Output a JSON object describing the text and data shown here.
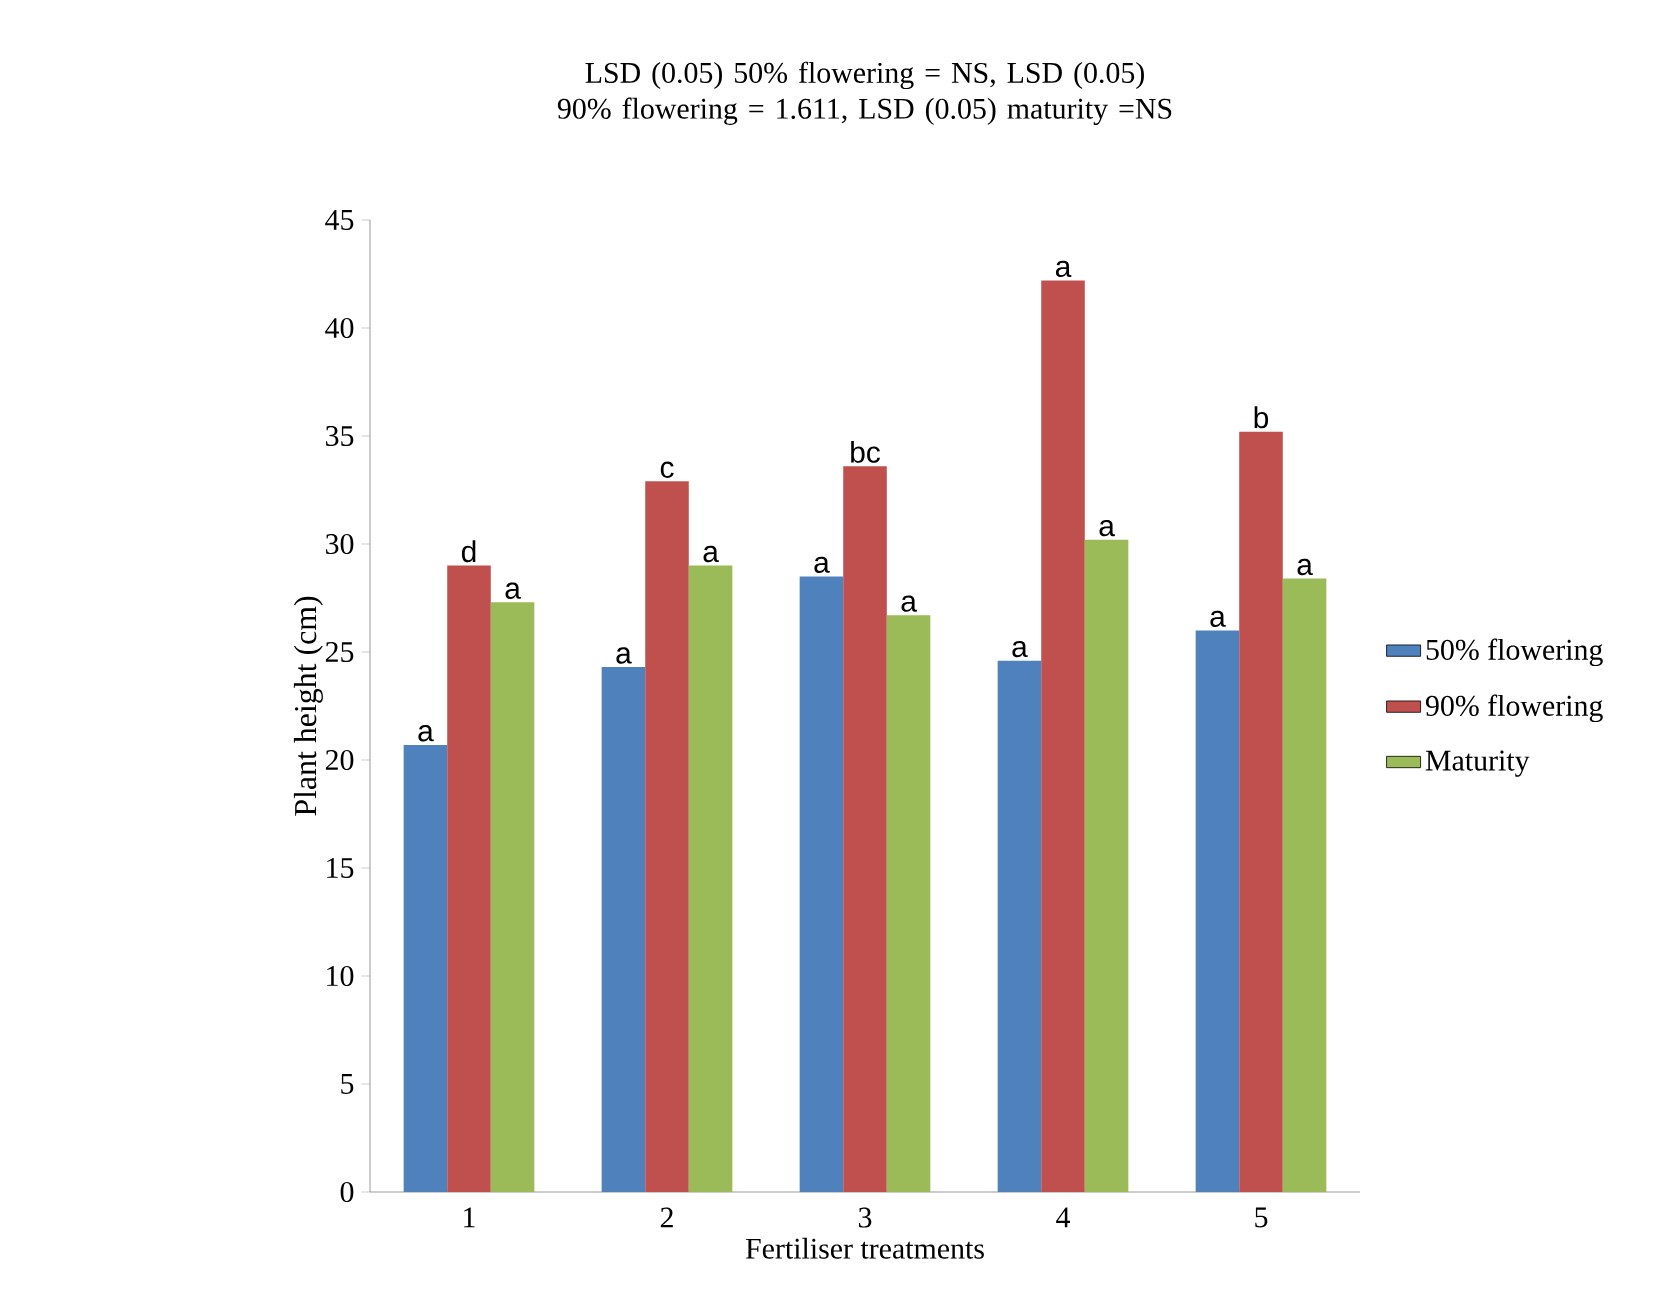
{
  "chart_data": {
    "type": "bar",
    "title": "LSD (0.05) 50% flowering = NS, LSD (0.05) 90% flowering = 1.611, LSD (0.05) maturity =NS",
    "xlabel": "Fertiliser treatments",
    "ylabel": "Plant height (cm)",
    "categories": [
      "1",
      "2",
      "3",
      "4",
      "5"
    ],
    "series": [
      {
        "name": "50% flowering",
        "color": "#4f81bd",
        "values": [
          20.7,
          24.3,
          28.5,
          24.6,
          26.0
        ],
        "value_labels": [
          "a",
          "a",
          "a",
          "a",
          "a"
        ]
      },
      {
        "name": "90% flowering",
        "color": "#c0504d",
        "values": [
          29.0,
          32.9,
          33.6,
          42.2,
          35.2
        ],
        "value_labels": [
          "d",
          "c",
          "bc",
          "a",
          "b"
        ]
      },
      {
        "name": "Maturity",
        "color": "#9bbb59",
        "values": [
          27.3,
          29.0,
          26.7,
          30.2,
          28.4
        ],
        "value_labels": [
          "a",
          "a",
          "a",
          "a",
          "a"
        ]
      }
    ],
    "ylim": [
      0,
      45
    ],
    "yticks": [
      0,
      5,
      10,
      15,
      20,
      25,
      30,
      35,
      40,
      45
    ],
    "legend": "right",
    "grid": false
  }
}
